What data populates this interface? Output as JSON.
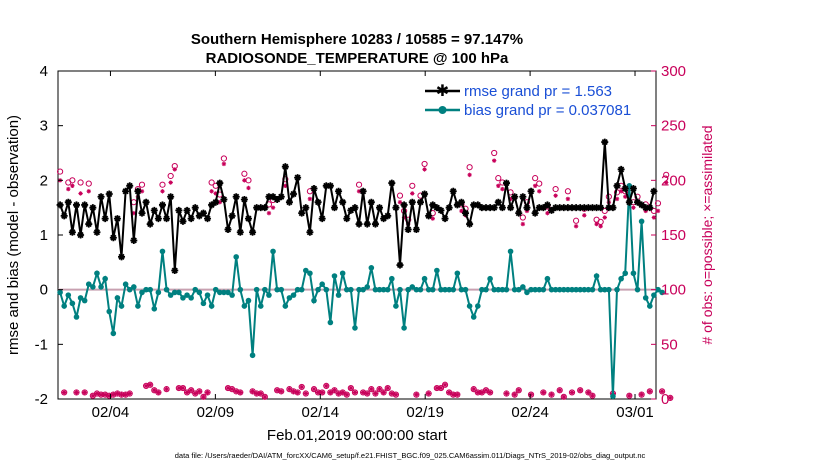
{
  "chart_data": {
    "type": "line",
    "title": "Southern Hemisphere 10283 / 10585 = 97.147%",
    "subtitle": "RADIOSONDE_TEMPERATURE @ 100 hPa",
    "xlabel": "Feb.01,2019 00:00:00 start",
    "ylabel": "rmse and bias (model - observation)",
    "ylabel_right": "# of obs: o=possible; ×=assimilated",
    "footnote": "data file: /Users/raeder/DAI/ATM_forcXX/CAM6_setup/f.e21.FHIST_BGC.f09_025.CAM6assim.011/Diags_NTrS_2019-02/obs_diag_output.nc",
    "xlim": [
      1,
      29.5
    ],
    "ylim": [
      -2,
      4
    ],
    "ylim_right": [
      0,
      300
    ],
    "x_ticks": [
      3.5,
      8.5,
      13.5,
      18.5,
      23.5,
      28.5
    ],
    "x_tick_labels": [
      "02/04",
      "02/09",
      "02/14",
      "02/19",
      "02/24",
      "03/01"
    ],
    "y_ticks": [
      -2,
      -1,
      0,
      1,
      2,
      3,
      4
    ],
    "y_tick_labels": [
      "-2",
      "-1",
      "0",
      "1",
      "2",
      "3",
      "4"
    ],
    "y_ticks_right": [
      0,
      50,
      100,
      150,
      200,
      250,
      300
    ],
    "y_tick_labels_right": [
      "0",
      "50",
      "100",
      "150",
      "200",
      "250",
      "300"
    ],
    "zero_line": 0,
    "legend": {
      "position": "top-right",
      "entries": [
        "rmse grand pr = 1.563",
        "bias grand pr = 0.037081"
      ]
    },
    "colors": {
      "rmse": "#000000",
      "bias": "#008080",
      "obs": "#c8005a",
      "zero": "#c8a0b0"
    },
    "series": [
      {
        "name": "rmse",
        "values": [
          1.55,
          1.35,
          1.6,
          1.05,
          1.55,
          1.0,
          1.55,
          1.2,
          1.5,
          1.05,
          1.7,
          1.3,
          1.75,
          0.95,
          1.3,
          0.6,
          1.8,
          1.9,
          0.9,
          1.8,
          1.4,
          1.6,
          1.2,
          1.45,
          1.3,
          1.55,
          1.3,
          1.7,
          0.35,
          1.45,
          1.25,
          1.45,
          1.3,
          1.5,
          1.35,
          1.4,
          1.3,
          1.55,
          1.6,
          1.95,
          1.65,
          1.1,
          1.35,
          1.7,
          1.05,
          1.65,
          1.3,
          1.05,
          1.5,
          1.5,
          1.5,
          1.7,
          1.7,
          1.65,
          1.7,
          2.25,
          1.6,
          1.75,
          2.05,
          1.4,
          1.5,
          1.05,
          1.85,
          1.6,
          1.3,
          1.9,
          1.9,
          1.5,
          1.8,
          1.6,
          1.3,
          1.45,
          1.5,
          1.2,
          1.8,
          1.2,
          1.6,
          1.2,
          1.5,
          1.3,
          1.35,
          1.95,
          1.5,
          0.45,
          1.55,
          1.1,
          1.6,
          1.1,
          1.6,
          1.75,
          1.35,
          1.55,
          1.5,
          1.45,
          1.3,
          1.5,
          1.8,
          1.55,
          1.6,
          1.4,
          1.2,
          1.55,
          1.55,
          1.5,
          1.5,
          1.5,
          1.5,
          1.6,
          1.5,
          1.95,
          1.5,
          1.7,
          1.4,
          1.7,
          1.5,
          1.8,
          1.4,
          1.5,
          1.5,
          1.55,
          1.45,
          1.5,
          1.5,
          1.5,
          1.5,
          1.5,
          1.5,
          1.5,
          1.5,
          1.5,
          1.5,
          1.5,
          1.5,
          2.7,
          1.5,
          1.5,
          1.9,
          2.2,
          1.85,
          1.6,
          1.85,
          1.6,
          1.55,
          1.5,
          1.5,
          1.8
        ]
      },
      {
        "name": "bias",
        "values": [
          -0.05,
          -0.3,
          -0.1,
          -0.25,
          -0.5,
          -0.15,
          -0.2,
          0.1,
          0.05,
          0.3,
          0.05,
          0.2,
          -0.4,
          -0.8,
          -0.15,
          -0.3,
          0.1,
          0.0,
          0.05,
          -0.3,
          -0.05,
          0.0,
          0.0,
          -0.35,
          -0.05,
          0.7,
          0.0,
          -0.1,
          -0.05,
          -0.05,
          -0.15,
          -0.1,
          -0.15,
          0.0,
          -0.05,
          -0.25,
          -0.1,
          -0.3,
          0.0,
          -0.05,
          -0.05,
          -0.05,
          -0.1,
          0.6,
          0.0,
          -0.3,
          -0.2,
          -1.2,
          0.0,
          -0.3,
          0.0,
          -0.1,
          0.7,
          0.0,
          0.0,
          -0.3,
          -0.15,
          -0.1,
          0.0,
          0.0,
          0.35,
          0.3,
          -0.2,
          0.0,
          0.1,
          0.0,
          -0.6,
          0.25,
          -0.1,
          0.3,
          0.0,
          0.0,
          -0.7,
          0.0,
          0.0,
          0.05,
          0.4,
          0.0,
          0.0,
          0.0,
          0.0,
          0.2,
          -0.3,
          0.0,
          -0.7,
          0.0,
          0.05,
          0.0,
          0.0,
          0.2,
          0.0,
          0.0,
          0.35,
          0.0,
          0.0,
          0.0,
          0.0,
          0.3,
          0.0,
          0.0,
          -0.3,
          -0.5,
          -0.3,
          0.0,
          0.0,
          0.2,
          0.0,
          0.0,
          0.0,
          0.0,
          0.7,
          0.0,
          0.0,
          0.05,
          -0.05,
          0.0,
          0.0,
          0.0,
          0.0,
          0.2,
          0.0,
          0.0,
          0.0,
          0.0,
          0.0,
          0.0,
          0.0,
          0.0,
          0.0,
          0.0,
          0.0,
          0.25,
          0.0,
          0.0,
          0.0,
          -1.95,
          0.0,
          0.2,
          0.3,
          1.9,
          0.3,
          0.0,
          1.25,
          -0.15,
          -0.3,
          -0.1,
          0.0,
          -0.05
        ]
      },
      {
        "name": "obs possible",
        "values": [
          208,
          6,
          198,
          200,
          6,
          198,
          6,
          197,
          3,
          5,
          4,
          4,
          3,
          4,
          5,
          4,
          4,
          5,
          180,
          192,
          196,
          12,
          13,
          8,
          6,
          196,
          9,
          204,
          213,
          10,
          10,
          6,
          8,
          5,
          7,
          2,
          6,
          198,
          195,
          187,
          220,
          10,
          9,
          7,
          6,
          206,
          200,
          7,
          5,
          5,
          2,
          178,
          182,
          8,
          7,
          201,
          9,
          7,
          6,
          11,
          5,
          190,
          9,
          6,
          6,
          12,
          6,
          8,
          5,
          6,
          4,
          10,
          6,
          196,
          6,
          5,
          9,
          5,
          9,
          6,
          10,
          5,
          4,
          186,
          172,
          164,
          195,
          4,
          186,
          215,
          5,
          170,
          10,
          10,
          13,
          6,
          4,
          4,
          178,
          174,
          212,
          9,
          6,
          6,
          8,
          6,
          225,
          202,
          198,
          5,
          189,
          4,
          8,
          166,
          180,
          4,
          202,
          197,
          6,
          176,
          4,
          192,
          8,
          2,
          190,
          6,
          163,
          8,
          174,
          6,
          3,
          164,
          162,
          172,
          185,
          5,
          189,
          195,
          190,
          3,
          180,
          185,
          4,
          178,
          7,
          172,
          179,
          7,
          205,
          1
        ]
      },
      {
        "name": "obs assimilated",
        "values": [
          200,
          6,
          192,
          195,
          6,
          188,
          6,
          190,
          3,
          5,
          4,
          4,
          3,
          4,
          5,
          4,
          4,
          5,
          170,
          185,
          190,
          12,
          13,
          8,
          6,
          190,
          9,
          198,
          210,
          10,
          10,
          6,
          8,
          5,
          7,
          2,
          6,
          190,
          188,
          180,
          215,
          10,
          9,
          7,
          6,
          200,
          193,
          7,
          5,
          5,
          2,
          170,
          175,
          8,
          7,
          195,
          9,
          7,
          6,
          11,
          5,
          183,
          9,
          6,
          6,
          12,
          6,
          8,
          5,
          6,
          4,
          10,
          6,
          190,
          6,
          5,
          9,
          5,
          9,
          6,
          10,
          5,
          4,
          180,
          166,
          160,
          188,
          4,
          180,
          210,
          5,
          165,
          10,
          10,
          13,
          6,
          4,
          4,
          172,
          168,
          205,
          9,
          6,
          6,
          8,
          6,
          218,
          195,
          192,
          5,
          183,
          4,
          8,
          160,
          172,
          4,
          195,
          190,
          6,
          170,
          4,
          186,
          8,
          2,
          183,
          6,
          158,
          8,
          168,
          6,
          3,
          160,
          158,
          166,
          180,
          5,
          183,
          190,
          185,
          3,
          175,
          180,
          4,
          172,
          7,
          166,
          172,
          7,
          198,
          1
        ]
      }
    ]
  }
}
